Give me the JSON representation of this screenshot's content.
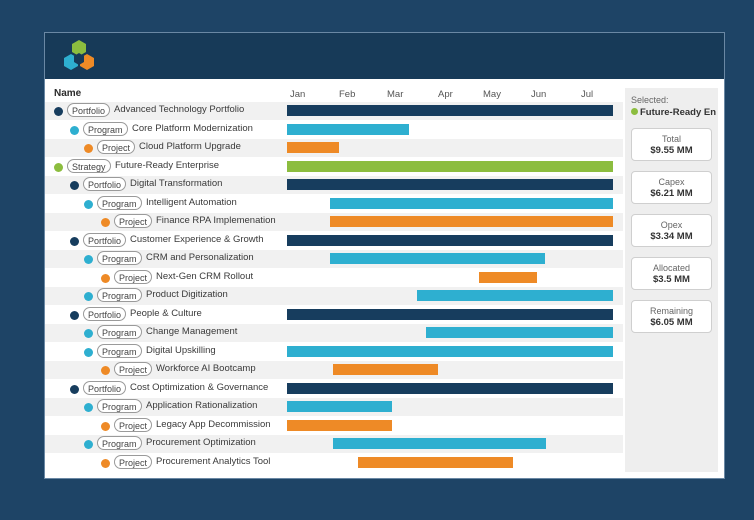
{
  "colors": {
    "portfolio": "#173d5e",
    "program": "#2eafd0",
    "project": "#ee8a26",
    "strategy": "#8cbd3f"
  },
  "header": {
    "name_label": "Name"
  },
  "timeline": {
    "months": [
      "Jan",
      "Feb",
      "Mar",
      "Apr",
      "May",
      "Jun",
      "Jul"
    ]
  },
  "rows": [
    {
      "type": "Portfolio",
      "name": "Advanced Technology Portfolio",
      "level": 0,
      "start": 0,
      "end": 6.8
    },
    {
      "type": "Program",
      "name": "Core Platform Modernization",
      "level": 1,
      "start": 0,
      "end": 2.54
    },
    {
      "type": "Project",
      "name": "Cloud Platform Upgrade",
      "level": 2,
      "start": 0,
      "end": 1.08
    },
    {
      "type": "Strategy",
      "name": "Future-Ready Enterprise",
      "level": 0,
      "start": 0,
      "end": 6.8
    },
    {
      "type": "Portfolio",
      "name": "Digital Transformation",
      "level": 1,
      "start": 0,
      "end": 6.8
    },
    {
      "type": "Program",
      "name": "Intelligent Automation",
      "level": 2,
      "start": 0.9,
      "end": 6.8
    },
    {
      "type": "Project",
      "name": "Finance RPA Implemenation",
      "level": 3,
      "start": 0.9,
      "end": 6.8
    },
    {
      "type": "Portfolio",
      "name": "Customer Experience & Growth",
      "level": 1,
      "start": 0,
      "end": 6.8
    },
    {
      "type": "Program",
      "name": "CRM and Personalization",
      "level": 2,
      "start": 0.9,
      "end": 5.37
    },
    {
      "type": "Project",
      "name": "Next-Gen CRM Rollout",
      "level": 3,
      "start": 4.0,
      "end": 5.2
    },
    {
      "type": "Program",
      "name": "Product Digitization",
      "level": 2,
      "start": 2.7,
      "end": 6.8
    },
    {
      "type": "Portfolio",
      "name": "People & Culture",
      "level": 1,
      "start": 0,
      "end": 6.8
    },
    {
      "type": "Program",
      "name": "Change Management",
      "level": 2,
      "start": 2.9,
      "end": 6.8
    },
    {
      "type": "Program",
      "name": "Digital Upskilling",
      "level": 2,
      "start": 0,
      "end": 6.8
    },
    {
      "type": "Project",
      "name": "Workforce AI Bootcamp",
      "level": 3,
      "start": 0.95,
      "end": 3.15
    },
    {
      "type": "Portfolio",
      "name": "Cost Optimization & Governance",
      "level": 1,
      "start": 0,
      "end": 6.8
    },
    {
      "type": "Program",
      "name": "Application Rationalization",
      "level": 2,
      "start": 0,
      "end": 2.18
    },
    {
      "type": "Project",
      "name": "Legacy App Decommission",
      "level": 3,
      "start": 0,
      "end": 2.18
    },
    {
      "type": "Program",
      "name": "Procurement Optimization",
      "level": 2,
      "start": 0.95,
      "end": 5.4
    },
    {
      "type": "Project",
      "name": "Procurement Analytics Tool",
      "level": 3,
      "start": 1.48,
      "end": 4.7
    }
  ],
  "panel": {
    "selected_label": "Selected:",
    "selected_value": "Future-Ready En",
    "cards": [
      {
        "label": "Total",
        "value": "$9.55 MM"
      },
      {
        "label": "Capex",
        "value": "$6.21 MM"
      },
      {
        "label": "Opex",
        "value": "$3.34 MM"
      },
      {
        "label": "Allocated",
        "value": "$3.5 MM"
      },
      {
        "label": "Remaining",
        "value": "$6.05 MM"
      }
    ]
  }
}
